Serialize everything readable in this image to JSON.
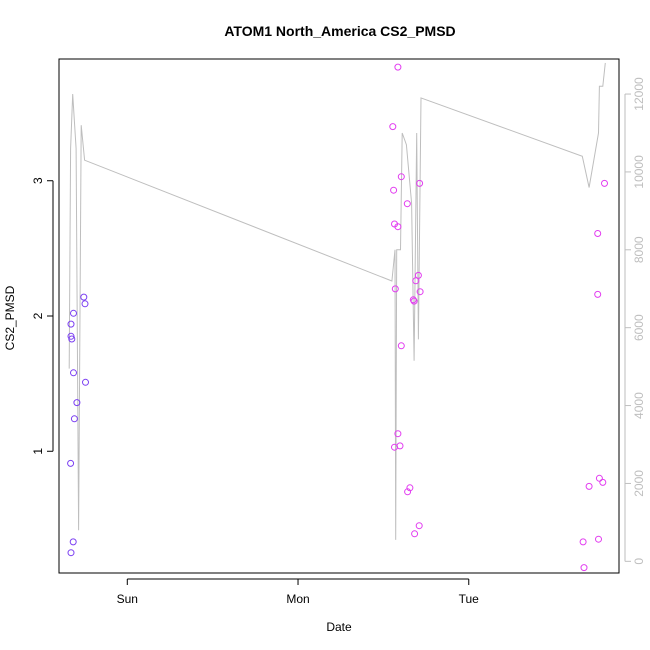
{
  "chart_data": {
    "type": "scatter",
    "title": "ATOM1 North_America CS2_PMSD",
    "xlabel": "Date",
    "ylabel": "CS2_PMSD",
    "x_ticks": [
      {
        "day": 1.0,
        "label": "Sun"
      },
      {
        "day": 2.0,
        "label": "Mon"
      },
      {
        "day": 3.0,
        "label": "Tue"
      }
    ],
    "y_ticks": [
      1,
      2,
      3
    ],
    "y2_ticks": [
      0,
      2000,
      4000,
      6000,
      8000,
      10000,
      12000
    ],
    "xlim": [
      0.6,
      3.88
    ],
    "ylim": [
      0.1,
      3.9
    ],
    "y2lim": [
      -300,
      12900
    ],
    "grid": false,
    "legend": "none",
    "colors": {
      "early": "#7b3ff2",
      "late": "#e23df0",
      "line": "#bebebe"
    },
    "series": [
      {
        "color": "#7b3ff2",
        "points": [
          [
            0.67,
            1.94
          ],
          [
            0.67,
            1.85
          ],
          [
            0.675,
            1.83
          ],
          [
            0.668,
            0.91
          ],
          [
            0.67,
            0.25
          ],
          [
            0.685,
            2.02
          ],
          [
            0.685,
            1.58
          ],
          [
            0.69,
            1.24
          ],
          [
            0.683,
            0.33
          ],
          [
            0.705,
            1.36
          ],
          [
            0.745,
            2.14
          ],
          [
            0.752,
            2.09
          ],
          [
            0.755,
            1.51
          ]
        ]
      },
      {
        "color": "#e23df0",
        "points": [
          [
            2.555,
            3.4
          ],
          [
            2.56,
            2.93
          ],
          [
            2.565,
            2.68
          ],
          [
            2.57,
            2.2
          ],
          [
            2.565,
            1.03
          ],
          [
            2.585,
            3.84
          ],
          [
            2.585,
            2.66
          ],
          [
            2.585,
            1.13
          ],
          [
            2.597,
            1.04
          ],
          [
            2.605,
            3.03
          ],
          [
            2.605,
            1.78
          ],
          [
            2.64,
            2.83
          ],
          [
            2.642,
            0.7
          ],
          [
            2.655,
            0.73
          ],
          [
            2.675,
            2.12
          ],
          [
            2.68,
            2.11
          ],
          [
            2.683,
            0.39
          ],
          [
            2.69,
            2.26
          ],
          [
            2.705,
            2.3
          ],
          [
            2.71,
            0.45
          ],
          [
            2.712,
            2.98
          ],
          [
            2.715,
            2.18
          ],
          [
            3.67,
            0.33
          ],
          [
            3.675,
            0.14
          ],
          [
            3.705,
            0.74
          ],
          [
            3.755,
            2.61
          ],
          [
            3.755,
            2.16
          ],
          [
            3.76,
            0.35
          ],
          [
            3.765,
            0.8
          ],
          [
            3.785,
            0.77
          ],
          [
            3.795,
            2.98
          ]
        ]
      }
    ],
    "line": [
      [
        0.66,
        4950
      ],
      [
        0.668,
        10600
      ],
      [
        0.68,
        12000
      ],
      [
        0.7,
        10600
      ],
      [
        0.715,
        800
      ],
      [
        0.73,
        11200
      ],
      [
        0.75,
        10300
      ],
      [
        2.55,
        7200
      ],
      [
        2.568,
        8000
      ],
      [
        2.572,
        550
      ],
      [
        2.578,
        8000
      ],
      [
        2.6,
        8000
      ],
      [
        2.61,
        11000
      ],
      [
        2.635,
        10700
      ],
      [
        2.665,
        9200
      ],
      [
        2.68,
        5150
      ],
      [
        2.695,
        11000
      ],
      [
        2.705,
        5700
      ],
      [
        2.72,
        11900
      ],
      [
        3.665,
        10400
      ],
      [
        3.705,
        9600
      ],
      [
        3.76,
        11000
      ],
      [
        3.765,
        12200
      ],
      [
        3.785,
        12200
      ],
      [
        3.8,
        12800
      ]
    ]
  }
}
